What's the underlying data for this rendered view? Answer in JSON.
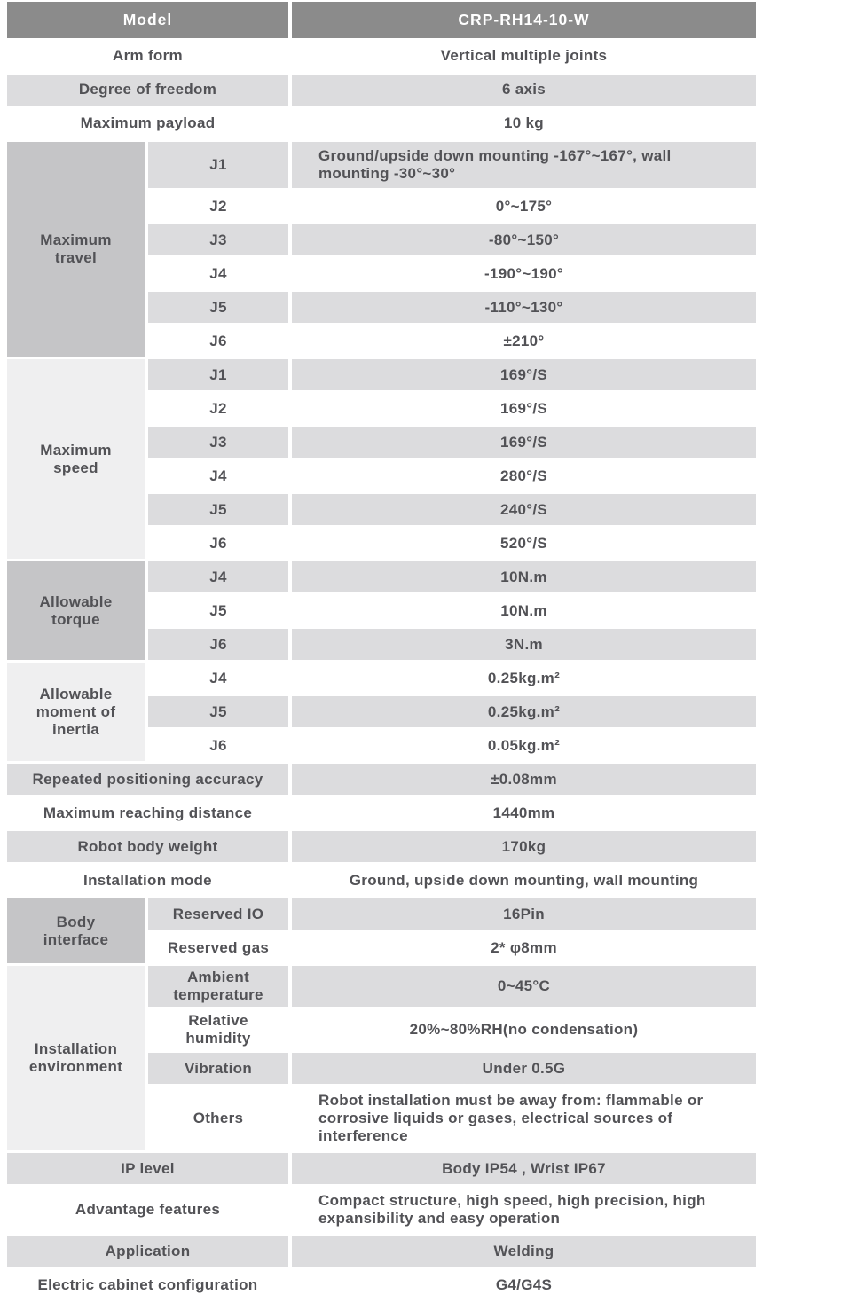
{
  "table": {
    "header": {
      "label": "Model",
      "value": "CRP-RH14-10-W"
    },
    "sections": [
      {
        "label": "Arm form",
        "value": "Vertical multiple joints"
      },
      {
        "label": "Degree of freedom",
        "value": "6 axis"
      },
      {
        "label": "Maximum payload",
        "value": "10 kg"
      },
      {
        "label": "Maximum travel",
        "rows": [
          {
            "label": "J1",
            "value": "Ground/upside down mounting -167°~167°, wall mounting -30°~30°"
          },
          {
            "label": "J2",
            "value": "0°~175°"
          },
          {
            "label": "J3",
            "value": "-80°~150°"
          },
          {
            "label": "J4",
            "value": "-190°~190°"
          },
          {
            "label": "J5",
            "value": "-110°~130°"
          },
          {
            "label": "J6",
            "value": "±210°"
          }
        ]
      },
      {
        "label": "Maximum speed",
        "rows": [
          {
            "label": "J1",
            "value": "169°/S"
          },
          {
            "label": "J2",
            "value": "169°/S"
          },
          {
            "label": "J3",
            "value": "169°/S"
          },
          {
            "label": "J4",
            "value": "280°/S"
          },
          {
            "label": "J5",
            "value": "240°/S"
          },
          {
            "label": "J6",
            "value": "520°/S"
          }
        ]
      },
      {
        "label": "Allowable torque",
        "rows": [
          {
            "label": "J4",
            "value": "10N.m"
          },
          {
            "label": "J5",
            "value": "10N.m"
          },
          {
            "label": "J6",
            "value": "3N.m"
          }
        ]
      },
      {
        "label": "Allowable moment of inertia",
        "rows": [
          {
            "label": "J4",
            "value": "0.25kg.m²"
          },
          {
            "label": "J5",
            "value": "0.25kg.m²"
          },
          {
            "label": "J6",
            "value": "0.05kg.m²"
          }
        ]
      },
      {
        "label": "Repeated positioning accuracy",
        "value": "±0.08mm"
      },
      {
        "label": "Maximum reaching distance",
        "value": "1440mm"
      },
      {
        "label": "Robot body weight",
        "value": "170kg"
      },
      {
        "label": "Installation mode",
        "value": "Ground, upside down mounting, wall mounting"
      },
      {
        "label": "Body interface",
        "rows": [
          {
            "label": "Reserved IO",
            "value": "16Pin"
          },
          {
            "label": "Reserved gas",
            "value": "2* φ8mm"
          }
        ]
      },
      {
        "label": "Installation environment",
        "rows": [
          {
            "label": "Ambient temperature",
            "value": "0~45°C"
          },
          {
            "label": "Relative humidity",
            "value": "20%~80%RH(no condensation)"
          },
          {
            "label": "Vibration",
            "value": "Under 0.5G"
          },
          {
            "label": "Others",
            "value": "Robot installation must be away from: flammable or corrosive liquids or gases, electrical sources of interference"
          }
        ]
      },
      {
        "label": "IP level",
        "value": "Body IP54 , Wrist IP67"
      },
      {
        "label": "Advantage features",
        "value": "Compact structure, high speed, high precision, high expansibility and easy operation"
      },
      {
        "label": "Application",
        "value": "Welding"
      },
      {
        "label": "Electric cabinet configuration",
        "value": "G4/G4S"
      }
    ]
  }
}
